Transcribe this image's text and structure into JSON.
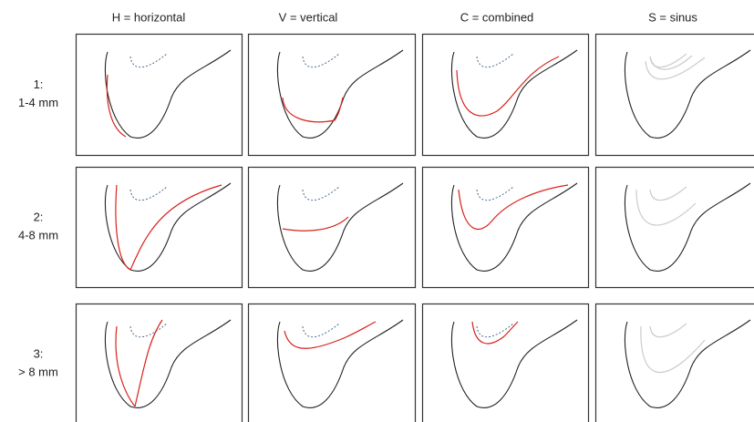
{
  "columns": [
    "H = horizontal",
    "V = vertical",
    "C = combined",
    "S = sinus"
  ],
  "rows": [
    {
      "number": "1:",
      "range": "1-4 mm"
    },
    {
      "number": "2:",
      "range": "4-8 mm"
    },
    {
      "number": "3:",
      "range": "> 8 mm"
    }
  ]
}
